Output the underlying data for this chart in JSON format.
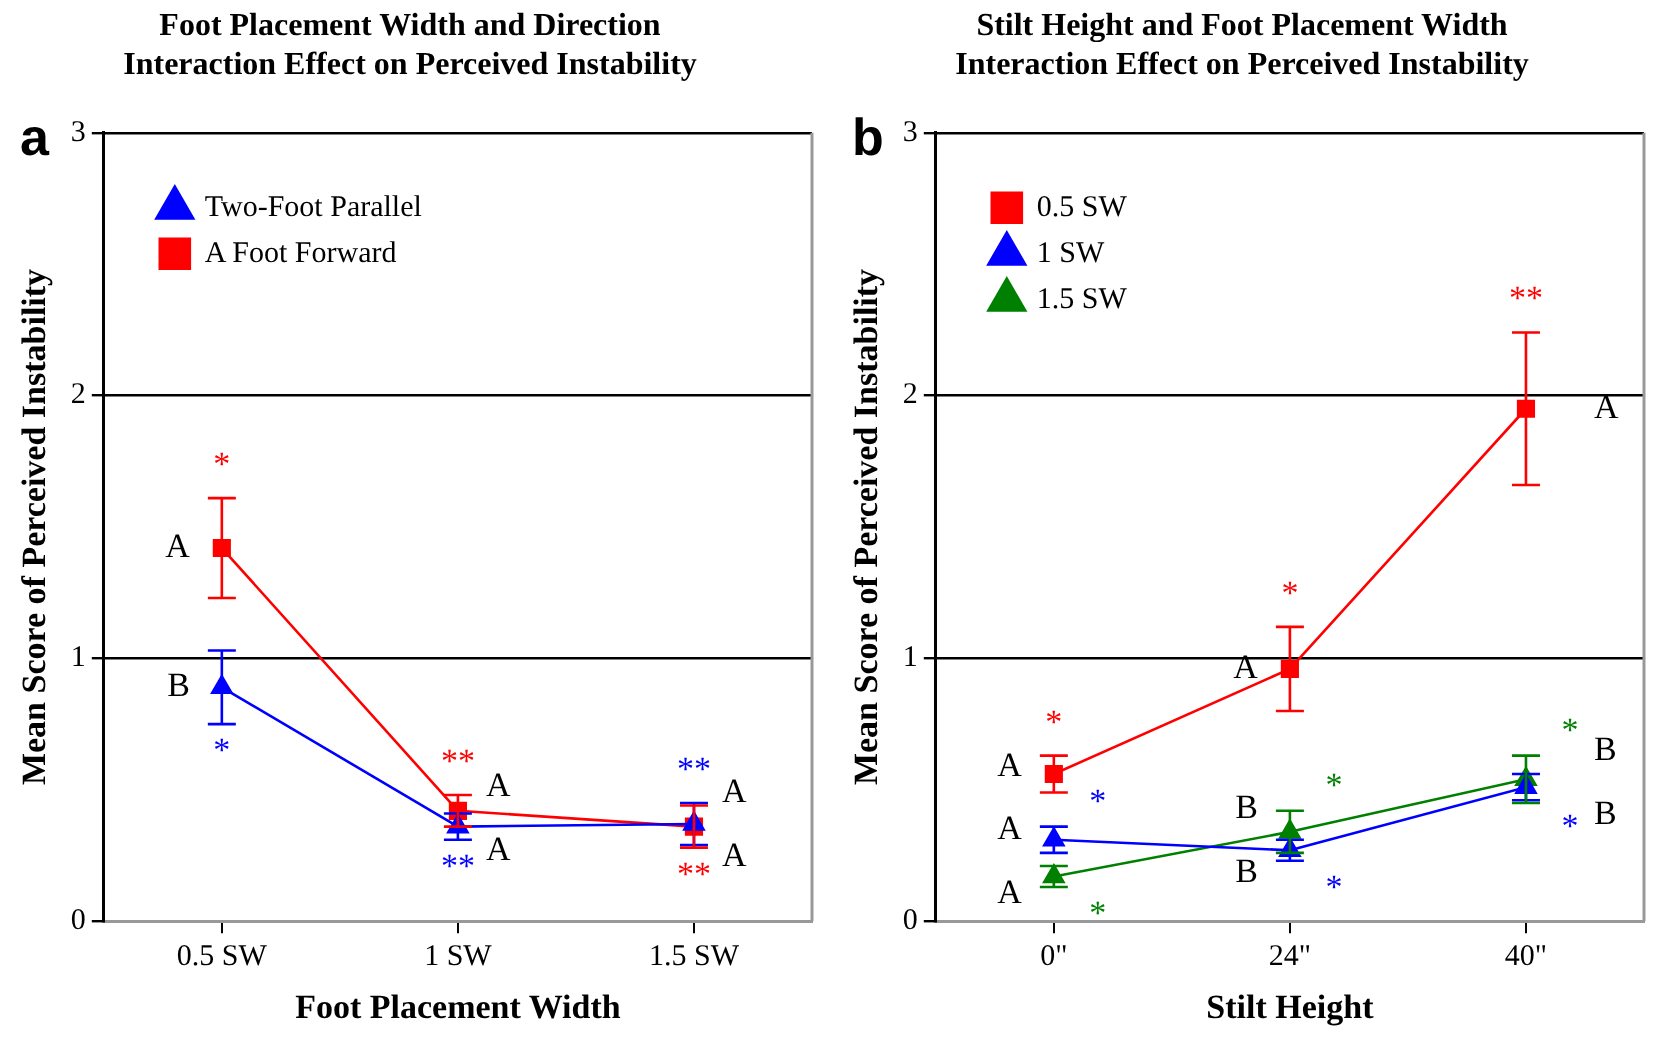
{
  "chart_data": [
    {
      "type": "line",
      "title": "Foot Placement Width and Direction\nInteraction Effect on Perceived Instability",
      "xlabel": "Foot Placement Width",
      "ylabel": "Mean Score of Perceived Instability",
      "categories": [
        "0.5 SW",
        "1 SW",
        "1.5 SW"
      ],
      "ylim": [
        0,
        3
      ],
      "yticks": [
        0,
        1,
        2,
        3
      ],
      "grid": "y",
      "legend": "top left",
      "series": [
        {
          "name": "Two-Foot Parallel",
          "color": "#0000ff",
          "marker": "triangle",
          "values": [
            0.89,
            0.36,
            0.37
          ],
          "errors": [
            0.14,
            0.05,
            0.08
          ],
          "value_labels": [
            "*",
            "**",
            "**"
          ]
        },
        {
          "name": "A Foot Forward",
          "color": "#ff0000",
          "marker": "square",
          "values": [
            1.42,
            0.42,
            0.36
          ],
          "errors": [
            0.19,
            0.06,
            0.08
          ],
          "value_labels": [
            "*",
            "**",
            "**"
          ]
        }
      ],
      "annotations": [
        "a",
        {
          "text": "A",
          "x": "0.5 SW",
          "y": 1.42
        },
        {
          "text": "B",
          "x": "0.5 SW",
          "y": 0.89
        },
        {
          "text": "A",
          "x": "1 SW",
          "y": 0.42
        },
        {
          "text": "A",
          "x": "1 SW",
          "y": 0.36
        },
        {
          "text": "A",
          "x": "1.5 SW",
          "y": 0.37
        },
        {
          "text": "A",
          "x": "1.5 SW",
          "y": 0.36
        }
      ]
    },
    {
      "type": "line",
      "title": "Stilt Height and Foot Placement Width\nInteraction Effect on Perceived Instability",
      "xlabel": "Stilt Height",
      "ylabel": "Mean Score of Perceived Instability",
      "categories": [
        "0\"",
        "24\"",
        "40\""
      ],
      "ylim": [
        0,
        3
      ],
      "yticks": [
        0,
        1,
        2,
        3
      ],
      "grid": "y",
      "legend": "top left",
      "series": [
        {
          "name": "0.5 SW",
          "color": "#ff0000",
          "marker": "square",
          "values": [
            0.56,
            0.96,
            1.95
          ],
          "errors": [
            0.07,
            0.16,
            0.29
          ],
          "value_labels": [
            "*",
            "*",
            "**"
          ]
        },
        {
          "name": "1 SW",
          "color": "#0000ff",
          "marker": "triangle",
          "values": [
            0.31,
            0.27,
            0.51
          ],
          "errors": [
            0.05,
            0.04,
            0.05
          ],
          "value_labels": [
            "*",
            "*",
            "*"
          ]
        },
        {
          "name": "1.5 SW",
          "color": "#008000",
          "marker": "triangle",
          "values": [
            0.17,
            0.34,
            0.54
          ],
          "errors": [
            0.04,
            0.08,
            0.09
          ],
          "value_labels": [
            "*",
            "*",
            "*"
          ]
        }
      ],
      "annotations": [
        "b",
        {
          "text": "A",
          "x": "0\"",
          "y": 0.56
        },
        {
          "text": "A",
          "x": "0\"",
          "y": 0.31
        },
        {
          "text": "A",
          "x": "0\"",
          "y": 0.17
        },
        {
          "text": "A",
          "x": "24\"",
          "y": 0.96
        },
        {
          "text": "B",
          "x": "24\"",
          "y": 0.34
        },
        {
          "text": "B",
          "x": "24\"",
          "y": 0.27
        },
        {
          "text": "A",
          "x": "40\"",
          "y": 1.95
        },
        {
          "text": "B",
          "x": "40\"",
          "y": 0.54
        },
        {
          "text": "B",
          "x": "40\"",
          "y": 0.51
        }
      ]
    }
  ]
}
